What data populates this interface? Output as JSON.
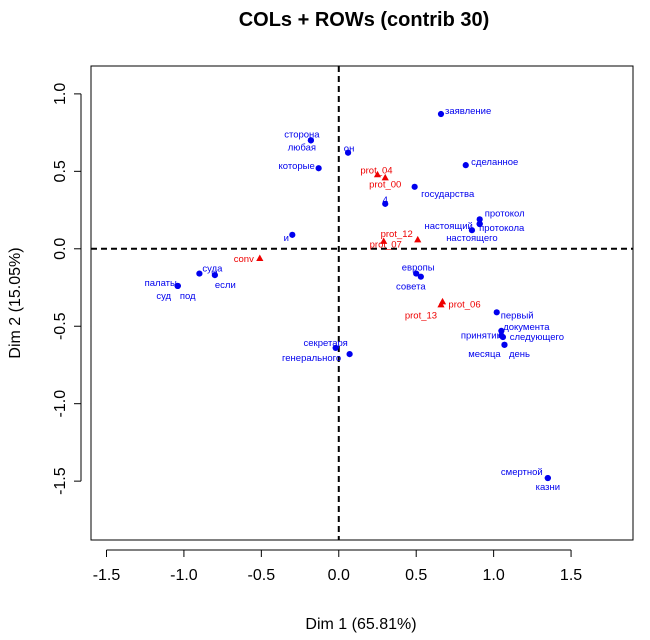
{
  "chart_data": {
    "type": "scatter",
    "title": "COLs + ROWs (contrib 30)",
    "xlabel": "Dim 1 (65.81%)",
    "ylabel": "Dim 2 (15.05%)",
    "xlim": [
      -1.6,
      1.9
    ],
    "ylim": [
      -1.88,
      1.18
    ],
    "xticks": [
      -1.5,
      -1.0,
      -0.5,
      0.0,
      0.5,
      1.0,
      1.5
    ],
    "xtick_labels": [
      "-1.5",
      "-1.0",
      "-0.5",
      "0.0",
      "0.5",
      "1.0",
      "1.5"
    ],
    "yticks": [
      -1.5,
      -1.0,
      -0.5,
      0.0,
      0.5,
      1.0
    ],
    "ytick_labels": [
      "-1.5",
      "-1.0",
      "-0.5",
      "0.0",
      "0.5",
      "1.0"
    ],
    "reference_lines": {
      "x": 0,
      "y": 0,
      "style": "dashed"
    },
    "grid": false,
    "series": [
      {
        "color": "#0000ee",
        "marker": "circle",
        "points": [
          {
            "x": 0.66,
            "y": 0.87,
            "label": "заявление"
          },
          {
            "x": -0.18,
            "y": 0.7,
            "label": "сторона"
          },
          {
            "x": -0.18,
            "y": 0.7,
            "label": "любая"
          },
          {
            "x": 0.06,
            "y": 0.62,
            "label": "он"
          },
          {
            "x": -0.13,
            "y": 0.52,
            "label": "которые"
          },
          {
            "x": 0.82,
            "y": 0.54,
            "label": "сделанное"
          },
          {
            "x": 0.49,
            "y": 0.4,
            "label": "государства"
          },
          {
            "x": 0.3,
            "y": 0.29,
            "label": "4"
          },
          {
            "x": 0.91,
            "y": 0.19,
            "label": "протокол"
          },
          {
            "x": 0.91,
            "y": 0.16,
            "label": "протокола"
          },
          {
            "x": 0.91,
            "y": 0.16,
            "label": "настоящий"
          },
          {
            "x": 0.86,
            "y": 0.12,
            "label": "настоящего"
          },
          {
            "x": -0.3,
            "y": 0.09,
            "label": "и"
          },
          {
            "x": 0.5,
            "y": -0.16,
            "label": "европы"
          },
          {
            "x": 0.53,
            "y": -0.18,
            "label": "совета"
          },
          {
            "x": -0.9,
            "y": -0.16,
            "label": "суда"
          },
          {
            "x": -0.8,
            "y": -0.17,
            "label": "если"
          },
          {
            "x": -1.04,
            "y": -0.24,
            "label": "палаты"
          },
          {
            "x": -1.04,
            "y": -0.24,
            "label": "суд"
          },
          {
            "x": -1.04,
            "y": -0.24,
            "label": "под"
          },
          {
            "x": 1.02,
            "y": -0.41,
            "label": "первый"
          },
          {
            "x": 1.05,
            "y": -0.53,
            "label": "документа"
          },
          {
            "x": 1.05,
            "y": -0.56,
            "label": "принятии"
          },
          {
            "x": 1.06,
            "y": -0.57,
            "label": "следующего"
          },
          {
            "x": 1.07,
            "y": -0.62,
            "label": "месяца"
          },
          {
            "x": 1.07,
            "y": -0.62,
            "label": "день"
          },
          {
            "x": -0.02,
            "y": -0.64,
            "label": "секретаря"
          },
          {
            "x": 0.07,
            "y": -0.68,
            "label": "генерального"
          },
          {
            "x": 1.35,
            "y": -1.48,
            "label": "смертной"
          },
          {
            "x": 1.35,
            "y": -1.48,
            "label": "казни"
          }
        ]
      },
      {
        "color": "#ee0000",
        "marker": "triangle",
        "points": [
          {
            "x": 0.25,
            "y": 0.48,
            "label": "prot_04"
          },
          {
            "x": 0.3,
            "y": 0.46,
            "label": "prot_00"
          },
          {
            "x": 0.29,
            "y": 0.05,
            "label": "prot_12"
          },
          {
            "x": 0.51,
            "y": 0.06,
            "label": "prot_07"
          },
          {
            "x": -0.51,
            "y": -0.06,
            "label": "conv"
          },
          {
            "x": 0.67,
            "y": -0.34,
            "label": "prot_06"
          },
          {
            "x": 0.66,
            "y": -0.36,
            "label": "prot_13"
          }
        ]
      }
    ]
  }
}
